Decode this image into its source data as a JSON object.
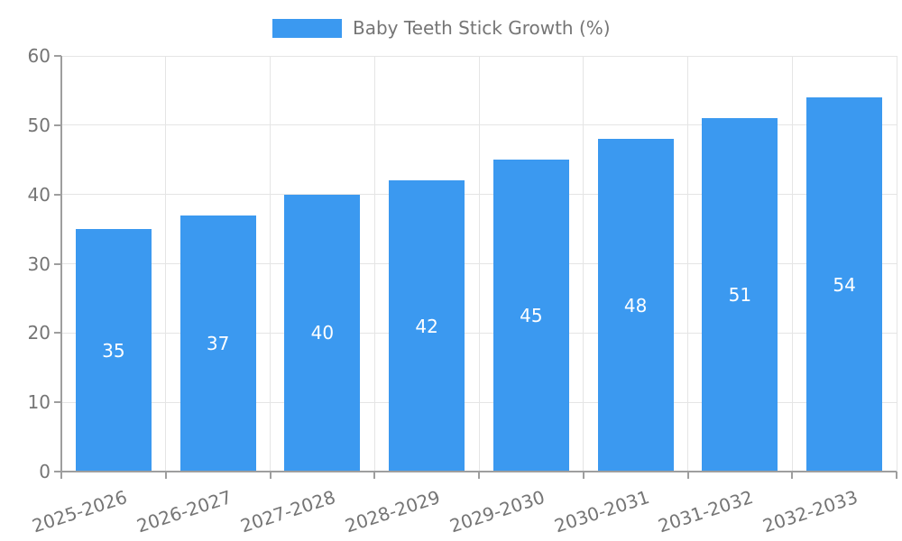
{
  "chart_data": {
    "type": "bar",
    "title": "Baby Teeth Stick Growth (%)",
    "categories": [
      "2025-2026",
      "2026-2027",
      "2027-2028",
      "2028-2029",
      "2029-2030",
      "2030-2031",
      "2031-2032",
      "2032-2033"
    ],
    "values": [
      35,
      37,
      40,
      42,
      45,
      48,
      51,
      54
    ],
    "xlabel": "",
    "ylabel": "",
    "ylim": [
      0,
      60
    ],
    "yticks": [
      0,
      10,
      20,
      30,
      40,
      50,
      60
    ],
    "grid": true,
    "legend_position": "top-center",
    "x_label_rotation_deg": -18,
    "colors": {
      "bar": "#3B99F0",
      "value_label": "#ffffff",
      "axis_text": "#757575",
      "axis_line": "#9e9e9e",
      "gridline": "#e5e5e5"
    }
  }
}
